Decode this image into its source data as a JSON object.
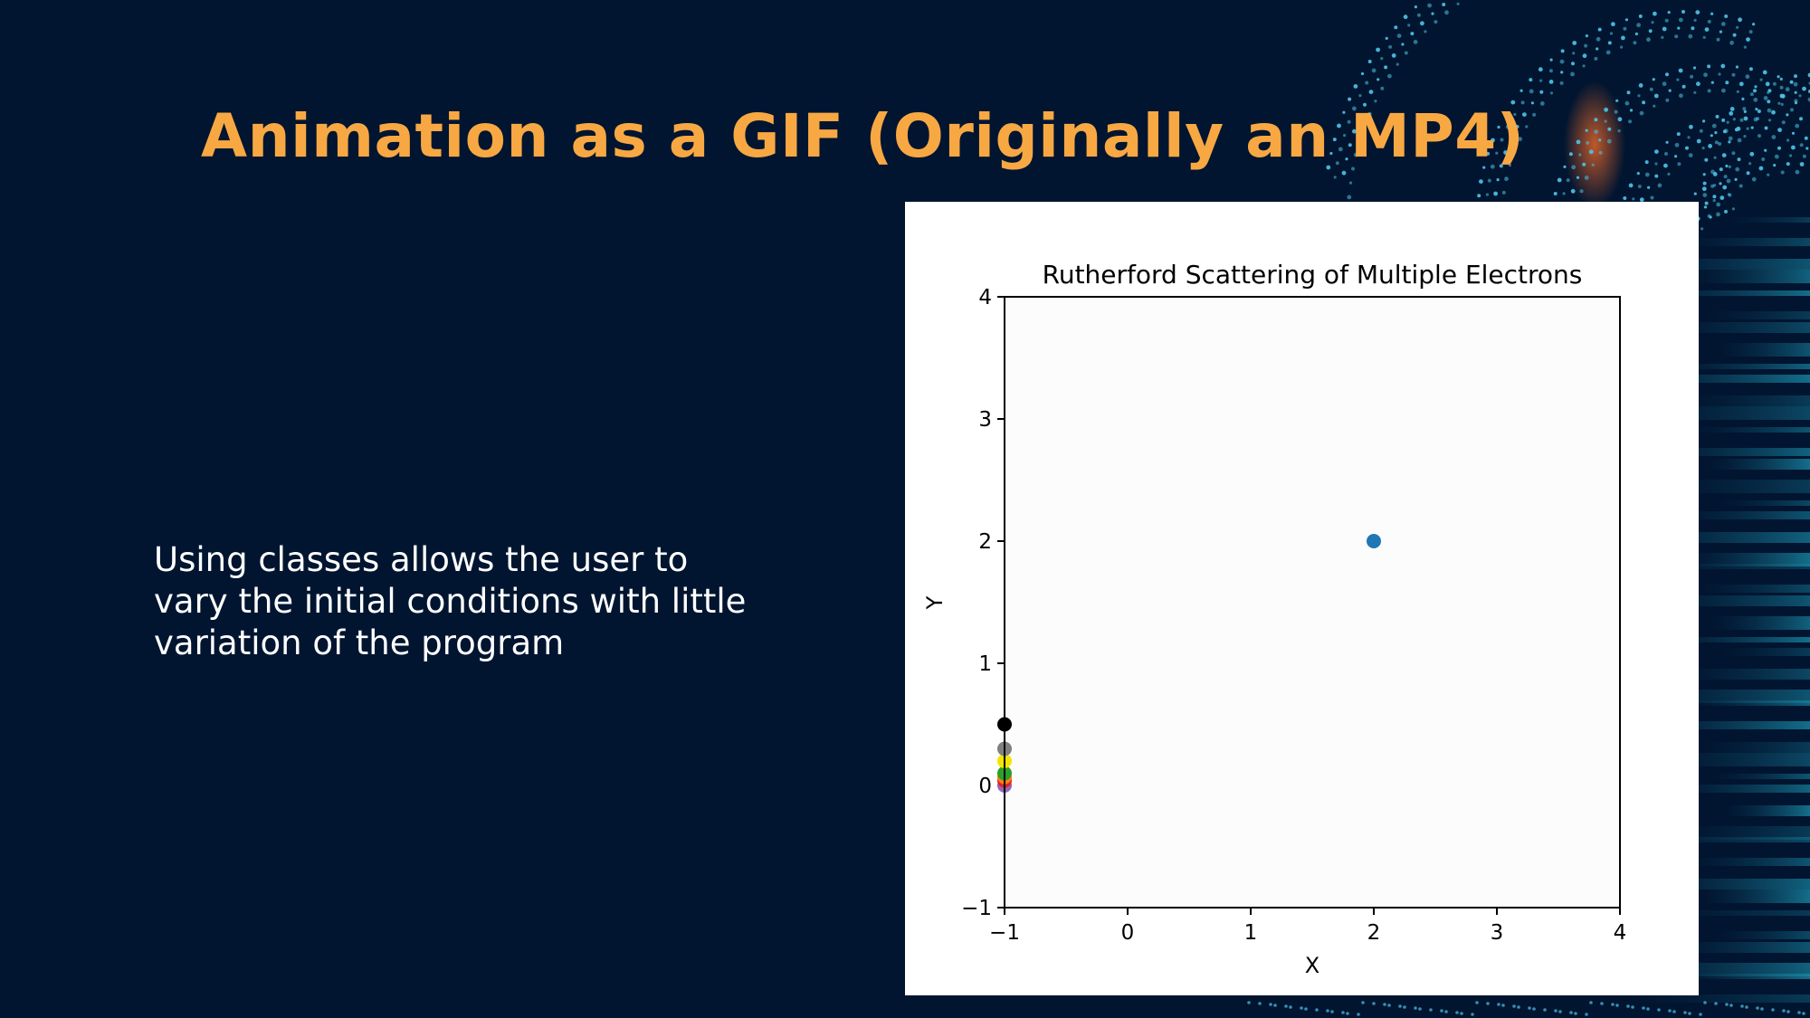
{
  "slide": {
    "title": "Animation as a GIF (Originally an MP4)",
    "body_text": "Using classes allows the user to\nvary the initial conditions with little\nvariation of the program",
    "colors": {
      "background": "#011530",
      "title": "#F8A843",
      "body_text": "#FFFFFF",
      "decoration": "#4FC3E8"
    }
  },
  "chart_data": {
    "type": "scatter",
    "title": "Rutherford Scattering of Multiple Electrons",
    "xlabel": "X",
    "ylabel": "Y",
    "xlim": [
      -1,
      4
    ],
    "ylim": [
      -1,
      4
    ],
    "xticks": [
      -1,
      0,
      1,
      2,
      3,
      4
    ],
    "yticks": [
      -1,
      0,
      1,
      2,
      3,
      4
    ],
    "grid": false,
    "series": [
      {
        "points": [
          [
            2,
            2
          ]
        ],
        "color": "#1F77B4"
      },
      {
        "points": [
          [
            -1,
            0.0
          ]
        ],
        "color": "#9467BD"
      },
      {
        "points": [
          [
            -1,
            0.04
          ]
        ],
        "color": "#D62728"
      },
      {
        "points": [
          [
            -1,
            0.07
          ]
        ],
        "color": "#FF7F0E"
      },
      {
        "points": [
          [
            -1,
            0.1
          ]
        ],
        "color": "#2CA02C"
      },
      {
        "points": [
          [
            -1,
            0.2
          ]
        ],
        "color": "#F2E600"
      },
      {
        "points": [
          [
            -1,
            0.3
          ]
        ],
        "color": "#808080"
      },
      {
        "points": [
          [
            -1,
            0.5
          ]
        ],
        "color": "#000000"
      }
    ]
  }
}
